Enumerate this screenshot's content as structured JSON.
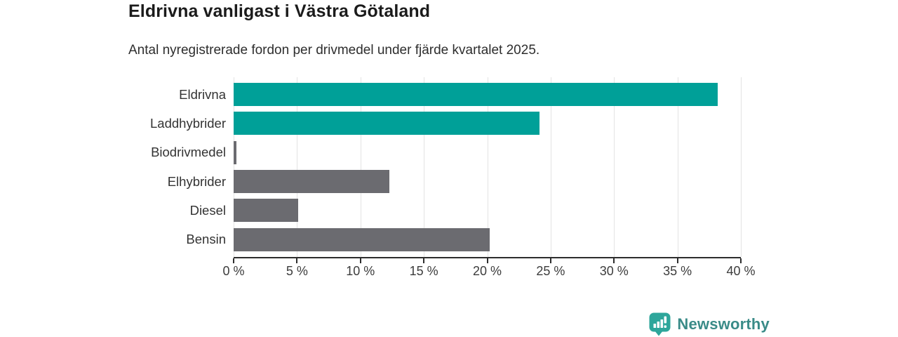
{
  "header": {
    "title": "Eldrivna vanligast i Västra Götaland",
    "subtitle": "Antal nyregistrerade fordon per drivmedel under fjärde kvartalet 2025."
  },
  "chart_data": {
    "type": "bar",
    "orientation": "horizontal",
    "title": "Eldrivna vanligast i Västra Götaland",
    "subtitle": "Antal nyregistrerade fordon per drivmedel under fjärde kvartalet 2025.",
    "categories": [
      "Eldrivna",
      "Laddhybrider",
      "Biodrivmedel",
      "Elhybrider",
      "Diesel",
      "Bensin"
    ],
    "values": [
      38.2,
      24.1,
      0.2,
      12.3,
      5.1,
      20.2
    ],
    "bar_colors": [
      "#00a098",
      "#00a098",
      "#6b6b70",
      "#6b6b70",
      "#6b6b70",
      "#6b6b70"
    ],
    "highlight_color": "#00a098",
    "base_color": "#6b6b70",
    "xlabel": "",
    "ylabel": "",
    "xlim": [
      0,
      40
    ],
    "x_ticks": [
      0,
      5,
      10,
      15,
      20,
      25,
      30,
      35,
      40
    ],
    "x_tick_labels": [
      "0 %",
      "5 %",
      "10 %",
      "15 %",
      "20 %",
      "25 %",
      "30 %",
      "35 %",
      "40 %"
    ],
    "grid": true,
    "gridline_color": "#e3e3e3",
    "axis_color": "#2d2d2d",
    "legend": false
  },
  "branding": {
    "logo_icon": "newsworthy-badge-bar-chart-icon",
    "logo_text": "Newsworthy",
    "logo_text_color": "#3a8b88",
    "logo_icon_color": "#2ea69b"
  }
}
